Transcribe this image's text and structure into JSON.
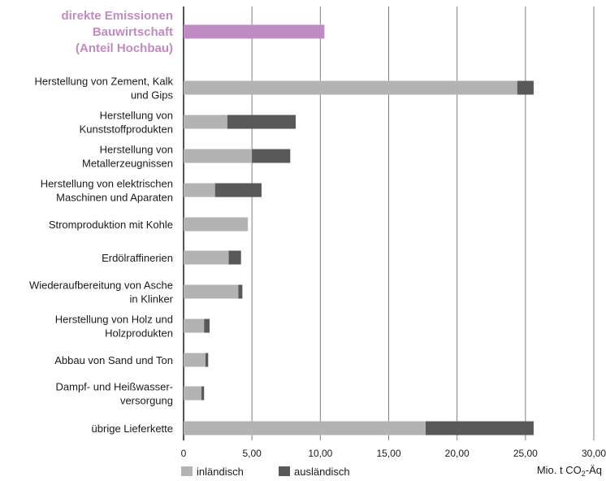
{
  "chart_data": {
    "type": "bar",
    "orientation": "horizontal",
    "stacked": true,
    "categories": [
      [
        "direkte Emissionen",
        "Bauwirtschaft",
        "(Anteil Hochbau)"
      ],
      [
        "Herstellung von Zement, Kalk",
        "und Gips"
      ],
      [
        "Herstellung von",
        "Kunststoffprodukten"
      ],
      [
        "Herstellung von",
        "Metallerzeugnissen"
      ],
      [
        "Herstellung von elektrischen",
        "Maschinen und Aparaten"
      ],
      [
        "Stromproduktion mit Kohle"
      ],
      [
        "Erdölraffinerien"
      ],
      [
        "Wiederaufbereitung von Asche",
        "in Klinker"
      ],
      [
        "Herstellung von Holz und",
        "Holzprodukten"
      ],
      [
        "Abbau von Sand und Ton"
      ],
      [
        "Dampf- und Heißwasser-",
        "versorgung"
      ],
      [
        "übrige Lieferkette"
      ]
    ],
    "highlight_index": 0,
    "highlight_value": 10.3,
    "series": [
      {
        "name": "inländisch",
        "values": [
          null,
          24.4,
          3.2,
          5.0,
          2.3,
          4.7,
          3.3,
          4.0,
          1.5,
          1.6,
          1.3,
          17.7
        ]
      },
      {
        "name": "ausländisch",
        "values": [
          null,
          1.2,
          5.0,
          2.8,
          3.4,
          0.0,
          0.9,
          0.3,
          0.4,
          0.2,
          0.2,
          7.9
        ]
      }
    ],
    "xlim": [
      0,
      30
    ],
    "x_ticks": [
      "0",
      "5,00",
      "10,00",
      "15,00",
      "20,00",
      "25,00",
      "30,00"
    ],
    "x_tick_values": [
      0,
      5,
      10,
      15,
      20,
      25,
      30
    ],
    "unit_label": {
      "prefix": "Mio. t CO",
      "subscript": "2",
      "suffix": "-Äq"
    },
    "grid": true,
    "legend_position": "bottom-left",
    "colors": {
      "highlight": "#bf8bc3",
      "inlaendisch": "#b3b3b3",
      "auslaendisch": "#595959",
      "grid": "#808080",
      "axis": "#1a1a1a"
    }
  }
}
